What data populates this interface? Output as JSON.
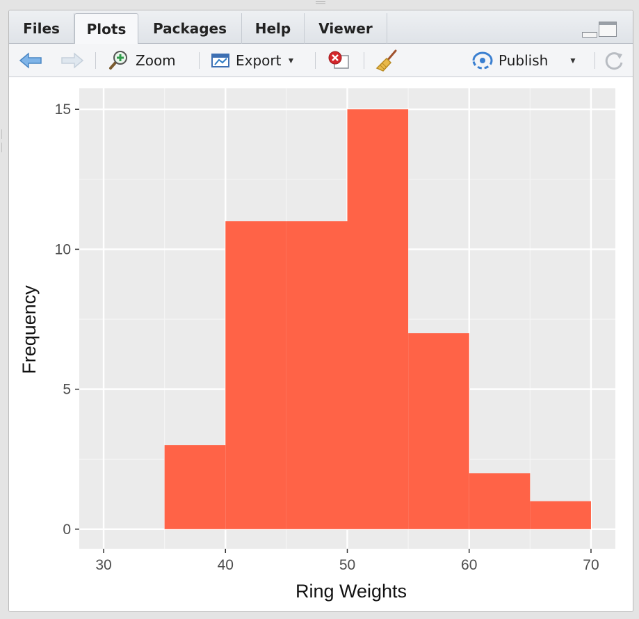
{
  "tabs": [
    {
      "label": "Files",
      "active": false
    },
    {
      "label": "Plots",
      "active": true
    },
    {
      "label": "Packages",
      "active": false
    },
    {
      "label": "Help",
      "active": false
    },
    {
      "label": "Viewer",
      "active": false
    }
  ],
  "toolbar": {
    "zoom_label": "Zoom",
    "export_label": "Export",
    "publish_label": "Publish",
    "icons": [
      "back-arrow-icon",
      "forward-arrow-icon",
      "zoom-icon",
      "export-icon",
      "remove-plot-icon",
      "clear-all-broom-icon",
      "publish-icon",
      "refresh-icon"
    ]
  },
  "colors": {
    "bar_fill": "#FF6347",
    "panel_bg": "#EBEBEB",
    "grid_major": "#FFFFFF",
    "accent_blue": "#4a8fd6"
  },
  "chart_data": {
    "type": "bar",
    "subtype": "histogram",
    "bins": [
      {
        "start": 35,
        "end": 40,
        "count": 3
      },
      {
        "start": 40,
        "end": 45,
        "count": 11
      },
      {
        "start": 45,
        "end": 50,
        "count": 11
      },
      {
        "start": 50,
        "end": 55,
        "count": 15
      },
      {
        "start": 55,
        "end": 60,
        "count": 7
      },
      {
        "start": 60,
        "end": 65,
        "count": 2
      },
      {
        "start": 65,
        "end": 70,
        "count": 1
      }
    ],
    "xlabel": "Ring Weights",
    "ylabel": "Frequency",
    "xlim": [
      28,
      72
    ],
    "ylim": [
      -0.7,
      15.75
    ],
    "xticks": [
      30,
      40,
      50,
      60,
      70
    ],
    "yticks": [
      0,
      5,
      10,
      15
    ],
    "grid": true
  }
}
